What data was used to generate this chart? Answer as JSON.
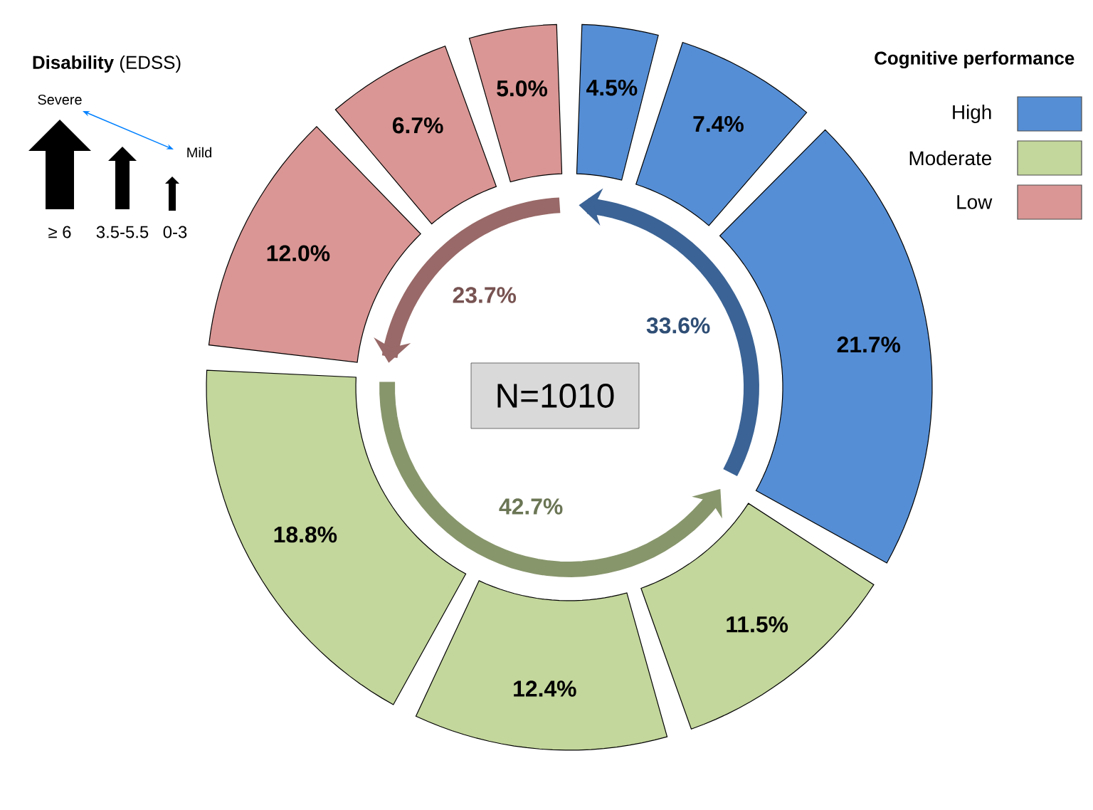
{
  "chart_data": {
    "type": "donut",
    "categories": [
      null,
      null,
      null,
      null,
      null,
      null,
      null,
      null,
      null
    ],
    "values": [
      4.5,
      7.4,
      21.7,
      11.5,
      12.4,
      18.8,
      12.0,
      6.7,
      5.0
    ],
    "colors": [
      "#558ed5",
      "#558ed5",
      "#558ed5",
      "#c3d69b",
      "#c3d69b",
      "#c3d69b",
      "#d99694",
      "#d99694",
      "#d99694"
    ],
    "value_labels": [
      "4.5%",
      "7.4%",
      "21.7%",
      "11.5%",
      "12.4%",
      "18.8%",
      "12.0%",
      "6.7%",
      "5.0%"
    ],
    "legend_title": "Cognitive performance",
    "annotations": [
      "**Disability** (EDSS)",
      "Severe",
      "Mild",
      "≥ 6",
      "3.5-5.5",
      "0-3",
      "High",
      "Moderate",
      "Low",
      "33.6%",
      "42.7%",
      "23.7%",
      "N=1010"
    ]
  }
}
